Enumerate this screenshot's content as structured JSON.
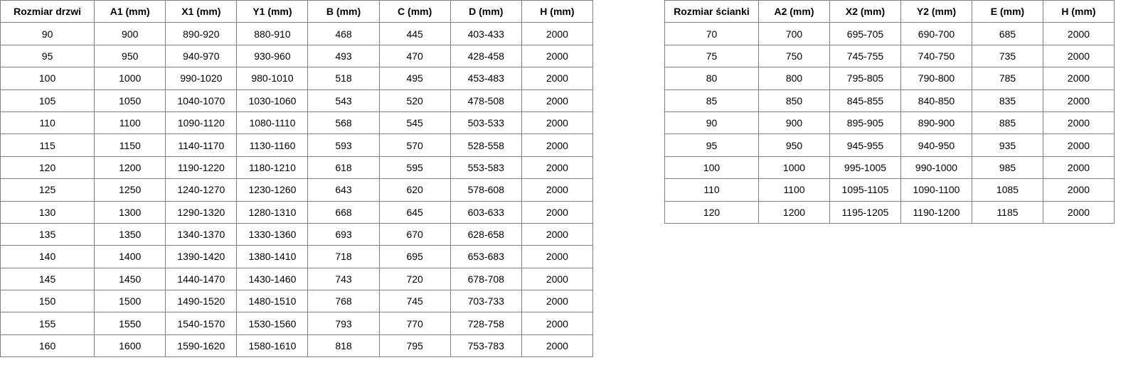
{
  "doors_table": {
    "headers": [
      "Rozmiar drzwi",
      "A1 (mm)",
      "X1 (mm)",
      "Y1 (mm)",
      "B (mm)",
      "C (mm)",
      "D (mm)",
      "H (mm)"
    ],
    "rows": [
      [
        "90",
        "900",
        "890-920",
        "880-910",
        "468",
        "445",
        "403-433",
        "2000"
      ],
      [
        "95",
        "950",
        "940-970",
        "930-960",
        "493",
        "470",
        "428-458",
        "2000"
      ],
      [
        "100",
        "1000",
        "990-1020",
        "980-1010",
        "518",
        "495",
        "453-483",
        "2000"
      ],
      [
        "105",
        "1050",
        "1040-1070",
        "1030-1060",
        "543",
        "520",
        "478-508",
        "2000"
      ],
      [
        "110",
        "1100",
        "1090-1120",
        "1080-1110",
        "568",
        "545",
        "503-533",
        "2000"
      ],
      [
        "115",
        "1150",
        "1140-1170",
        "1130-1160",
        "593",
        "570",
        "528-558",
        "2000"
      ],
      [
        "120",
        "1200",
        "1190-1220",
        "1180-1210",
        "618",
        "595",
        "553-583",
        "2000"
      ],
      [
        "125",
        "1250",
        "1240-1270",
        "1230-1260",
        "643",
        "620",
        "578-608",
        "2000"
      ],
      [
        "130",
        "1300",
        "1290-1320",
        "1280-1310",
        "668",
        "645",
        "603-633",
        "2000"
      ],
      [
        "135",
        "1350",
        "1340-1370",
        "1330-1360",
        "693",
        "670",
        "628-658",
        "2000"
      ],
      [
        "140",
        "1400",
        "1390-1420",
        "1380-1410",
        "718",
        "695",
        "653-683",
        "2000"
      ],
      [
        "145",
        "1450",
        "1440-1470",
        "1430-1460",
        "743",
        "720",
        "678-708",
        "2000"
      ],
      [
        "150",
        "1500",
        "1490-1520",
        "1480-1510",
        "768",
        "745",
        "703-733",
        "2000"
      ],
      [
        "155",
        "1550",
        "1540-1570",
        "1530-1560",
        "793",
        "770",
        "728-758",
        "2000"
      ],
      [
        "160",
        "1600",
        "1590-1620",
        "1580-1610",
        "818",
        "795",
        "753-783",
        "2000"
      ]
    ]
  },
  "wall_table": {
    "headers": [
      "Rozmiar ścianki",
      "A2 (mm)",
      "X2 (mm)",
      "Y2 (mm)",
      "E (mm)",
      "H (mm)"
    ],
    "rows": [
      [
        "70",
        "700",
        "695-705",
        "690-700",
        "685",
        "2000"
      ],
      [
        "75",
        "750",
        "745-755",
        "740-750",
        "735",
        "2000"
      ],
      [
        "80",
        "800",
        "795-805",
        "790-800",
        "785",
        "2000"
      ],
      [
        "85",
        "850",
        "845-855",
        "840-850",
        "835",
        "2000"
      ],
      [
        "90",
        "900",
        "895-905",
        "890-900",
        "885",
        "2000"
      ],
      [
        "95",
        "950",
        "945-955",
        "940-950",
        "935",
        "2000"
      ],
      [
        "100",
        "1000",
        "995-1005",
        "990-1000",
        "985",
        "2000"
      ],
      [
        "110",
        "1100",
        "1095-1105",
        "1090-1100",
        "1085",
        "2000"
      ],
      [
        "120",
        "1200",
        "1195-1205",
        "1190-1200",
        "1185",
        "2000"
      ]
    ]
  }
}
